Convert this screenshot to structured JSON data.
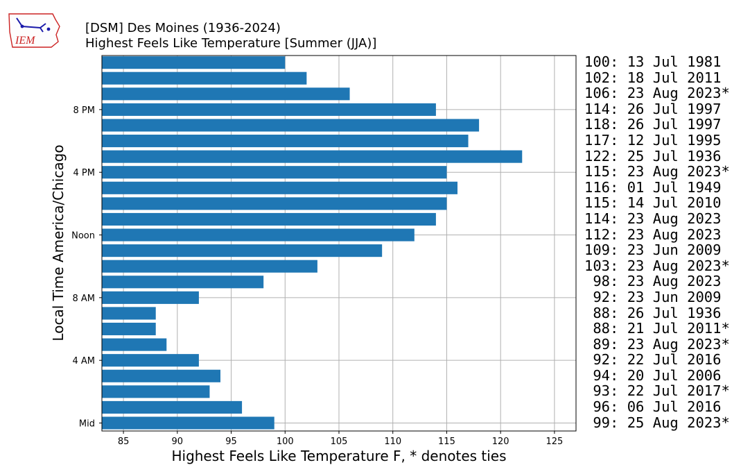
{
  "header": {
    "title_line1": "[DSM] Des Moines (1936-2024)",
    "title_line2": "Highest Feels Like Temperature [Summer (JJA)]",
    "logo_text": "IEM"
  },
  "colors": {
    "bar": "#1f77b4",
    "grid": "#b0b0b0",
    "logo_red": "#cc2222",
    "logo_blue": "#1a1aaa"
  },
  "chart_data": {
    "type": "bar",
    "orientation": "horizontal",
    "title": "[DSM] Des Moines (1936-2024)\nHighest Feels Like Temperature [Summer (JJA)]",
    "xlabel": "Highest Feels Like Temperature F, * denotes ties",
    "ylabel": "Local Time America/Chicago",
    "xlim": [
      83,
      127
    ],
    "xticks": [
      85,
      90,
      95,
      100,
      105,
      110,
      115,
      120,
      125
    ],
    "grid": true,
    "categories": [
      0,
      1,
      2,
      3,
      4,
      5,
      6,
      7,
      8,
      9,
      10,
      11,
      12,
      13,
      14,
      15,
      16,
      17,
      18,
      19,
      20,
      21,
      22,
      23
    ],
    "ytick_labels": [
      {
        "hour": 0,
        "label": "Mid"
      },
      {
        "hour": 4,
        "label": "4 AM"
      },
      {
        "hour": 8,
        "label": "8 AM"
      },
      {
        "hour": 12,
        "label": "Noon"
      },
      {
        "hour": 16,
        "label": "4 PM"
      },
      {
        "hour": 20,
        "label": "8 PM"
      }
    ],
    "values": [
      99,
      96,
      93,
      94,
      92,
      89,
      88,
      88,
      92,
      98,
      103,
      109,
      112,
      114,
      115,
      116,
      115,
      122,
      117,
      118,
      114,
      106,
      102,
      100
    ],
    "annotations": [
      " 99: 25 Aug 2023*",
      " 96: 06 Jul 2016",
      " 93: 22 Jul 2017*",
      " 94: 20 Jul 2006",
      " 92: 22 Jul 2016",
      " 89: 23 Aug 2023*",
      " 88: 21 Jul 2011*",
      " 88: 26 Jul 1936",
      " 92: 23 Jun 2009",
      " 98: 23 Aug 2023",
      "103: 23 Aug 2023*",
      "109: 23 Jun 2009",
      "112: 23 Aug 2023",
      "114: 23 Aug 2023",
      "115: 14 Jul 2010",
      "116: 01 Jul 1949",
      "115: 23 Aug 2023*",
      "122: 25 Jul 1936",
      "117: 12 Jul 1995",
      "118: 26 Jul 1997",
      "114: 26 Jul 1997",
      "106: 23 Aug 2023*",
      "102: 18 Jul 2011",
      "100: 13 Jul 1981"
    ]
  }
}
